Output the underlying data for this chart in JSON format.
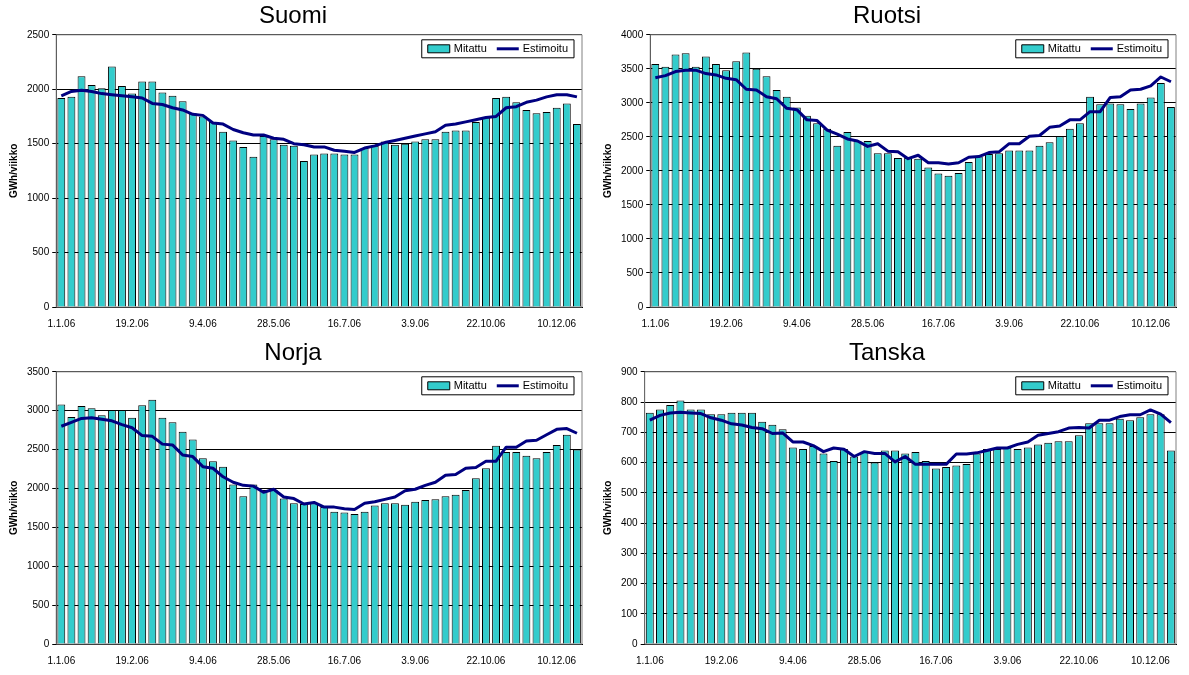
{
  "chart_data": [
    {
      "type": "bar",
      "title": "Suomi",
      "ylabel": "GWh/viikko",
      "categories": [
        "1.1.06",
        null,
        null,
        null,
        null,
        null,
        null,
        "19.2.06",
        null,
        null,
        null,
        null,
        null,
        null,
        "9.4.06",
        null,
        null,
        null,
        null,
        null,
        null,
        "28.5.06",
        null,
        null,
        null,
        null,
        null,
        null,
        "16.7.06",
        null,
        null,
        null,
        null,
        null,
        null,
        "3.9.06",
        null,
        null,
        null,
        null,
        null,
        null,
        "22.10.06",
        null,
        null,
        null,
        null,
        null,
        null,
        "10.12.06",
        null,
        null
      ],
      "series": [
        {
          "name": "Mitattu",
          "color": "#33cccc",
          "values": [
            1920,
            1930,
            2120,
            2040,
            2010,
            2210,
            2030,
            1960,
            2070,
            2070,
            1970,
            1940,
            1890,
            1780,
            1750,
            1700,
            1610,
            1530,
            1470,
            1380,
            1570,
            1540,
            1490,
            1480,
            1340,
            1400,
            1410,
            1410,
            1400,
            1400,
            1460,
            1480,
            1520,
            1490,
            1500,
            1520,
            1540,
            1540,
            1610,
            1620,
            1620,
            1700,
            1740,
            1920,
            1930,
            1880,
            1810,
            1780,
            1790,
            1830,
            1870,
            1680
          ]
        },
        {
          "name": "Estimoitu",
          "type": "line",
          "color": "#000080",
          "values": [
            1940,
            1980,
            1990,
            1980,
            1960,
            1950,
            1940,
            1930,
            1920,
            1870,
            1860,
            1830,
            1810,
            1770,
            1760,
            1690,
            1680,
            1630,
            1600,
            1580,
            1580,
            1550,
            1540,
            1500,
            1490,
            1470,
            1470,
            1440,
            1430,
            1420,
            1460,
            1480,
            1510,
            1530,
            1550,
            1570,
            1590,
            1610,
            1670,
            1680,
            1700,
            1720,
            1740,
            1750,
            1830,
            1840,
            1880,
            1900,
            1930,
            1950,
            1950,
            1930
          ]
        }
      ],
      "ylim": [
        0,
        2500
      ],
      "yticks": [
        0,
        500,
        1000,
        1500,
        2000,
        2500
      ],
      "grid": "y",
      "legend": "top right",
      "marker": "none"
    },
    {
      "type": "bar",
      "title": "Ruotsi",
      "ylabel": "GWh/viikko",
      "categories": [
        "1.1.06",
        null,
        null,
        null,
        null,
        null,
        null,
        "19.2.06",
        null,
        null,
        null,
        null,
        null,
        null,
        "9.4.06",
        null,
        null,
        null,
        null,
        null,
        null,
        "28.5.06",
        null,
        null,
        null,
        null,
        null,
        null,
        "16.7.06",
        null,
        null,
        null,
        null,
        null,
        null,
        "3.9.06",
        null,
        null,
        null,
        null,
        null,
        null,
        "22.10.06",
        null,
        null,
        null,
        null,
        null,
        null,
        "10.12.06",
        null,
        null
      ],
      "series": [
        {
          "name": "Mitattu",
          "color": "#33cccc",
          "values": [
            3570,
            3530,
            3710,
            3730,
            3530,
            3680,
            3570,
            3480,
            3610,
            3740,
            3500,
            3390,
            3190,
            3090,
            2930,
            2810,
            2700,
            2620,
            2370,
            2570,
            2440,
            2440,
            2260,
            2260,
            2190,
            2190,
            2180,
            2050,
            1960,
            1930,
            1970,
            2130,
            2210,
            2250,
            2260,
            2300,
            2300,
            2300,
            2370,
            2420,
            2510,
            2620,
            2700,
            3090,
            2980,
            2990,
            2980,
            2910,
            2990,
            3080,
            3290,
            2940
          ]
        },
        {
          "name": "Estimoitu",
          "type": "line",
          "color": "#000080",
          "values": [
            3370,
            3400,
            3460,
            3480,
            3480,
            3430,
            3410,
            3360,
            3340,
            3200,
            3190,
            3090,
            3060,
            2920,
            2900,
            2750,
            2740,
            2600,
            2540,
            2470,
            2440,
            2360,
            2400,
            2290,
            2280,
            2180,
            2230,
            2120,
            2120,
            2100,
            2120,
            2200,
            2210,
            2270,
            2280,
            2400,
            2400,
            2510,
            2520,
            2640,
            2660,
            2750,
            2750,
            2870,
            2870,
            3080,
            3090,
            3190,
            3200,
            3250,
            3380,
            3310
          ]
        }
      ],
      "ylim": [
        0,
        4000
      ],
      "yticks": [
        0,
        500,
        1000,
        1500,
        2000,
        2500,
        3000,
        3500,
        4000
      ],
      "grid": "y",
      "legend": "top right",
      "marker": "none"
    },
    {
      "type": "bar",
      "title": "Norja",
      "ylabel": "GWh/viikko",
      "categories": [
        "1.1.06",
        null,
        null,
        null,
        null,
        null,
        null,
        "19.2.06",
        null,
        null,
        null,
        null,
        null,
        null,
        "9.4.06",
        null,
        null,
        null,
        null,
        null,
        null,
        "28.5.06",
        null,
        null,
        null,
        null,
        null,
        null,
        "16.7.06",
        null,
        null,
        null,
        null,
        null,
        null,
        "3.9.06",
        null,
        null,
        null,
        null,
        null,
        null,
        "22.10.06",
        null,
        null,
        null,
        null,
        null,
        null,
        "10.12.06",
        null,
        null
      ],
      "series": [
        {
          "name": "Mitattu",
          "color": "#33cccc",
          "values": [
            3080,
            2920,
            3060,
            3030,
            2940,
            3010,
            3010,
            2910,
            3070,
            3140,
            2910,
            2850,
            2730,
            2630,
            2390,
            2350,
            2280,
            2050,
            1900,
            2050,
            1980,
            1980,
            1870,
            1810,
            1800,
            1810,
            1760,
            1700,
            1690,
            1670,
            1700,
            1780,
            1810,
            1810,
            1790,
            1830,
            1850,
            1860,
            1900,
            1920,
            1980,
            2130,
            2260,
            2550,
            2470,
            2470,
            2420,
            2390,
            2470,
            2560,
            2690,
            2500
          ]
        },
        {
          "name": "Estimoitu",
          "type": "line",
          "color": "#000080",
          "values": [
            2800,
            2850,
            2900,
            2910,
            2890,
            2870,
            2820,
            2780,
            2680,
            2670,
            2570,
            2560,
            2430,
            2410,
            2280,
            2260,
            2150,
            2080,
            2040,
            2030,
            1950,
            1990,
            1890,
            1870,
            1800,
            1820,
            1760,
            1760,
            1740,
            1730,
            1810,
            1830,
            1860,
            1890,
            1970,
            1990,
            2040,
            2080,
            2170,
            2180,
            2260,
            2270,
            2350,
            2350,
            2530,
            2530,
            2610,
            2620,
            2690,
            2760,
            2770,
            2710
          ]
        }
      ],
      "ylim": [
        0,
        3500
      ],
      "yticks": [
        0,
        500,
        1000,
        1500,
        2000,
        2500,
        3000,
        3500
      ],
      "grid": "y",
      "legend": "top right",
      "marker": "none"
    },
    {
      "type": "bar",
      "title": "Tanska",
      "ylabel": "GWh/viikko",
      "categories": [
        "1.1.06",
        null,
        null,
        null,
        null,
        null,
        null,
        "19.2.06",
        null,
        null,
        null,
        null,
        null,
        null,
        "9.4.06",
        null,
        null,
        null,
        null,
        null,
        null,
        "28.5.06",
        null,
        null,
        null,
        null,
        null,
        null,
        "16.7.06",
        null,
        null,
        null,
        null,
        null,
        null,
        "3.9.06",
        null,
        null,
        null,
        null,
        null,
        null,
        "22.10.06",
        null,
        null,
        null,
        null,
        null,
        null,
        "10.12.06",
        null,
        null
      ],
      "series": [
        {
          "name": "Mitattu",
          "color": "#33cccc",
          "values": [
            765,
            775,
            790,
            805,
            775,
            775,
            760,
            760,
            765,
            765,
            765,
            735,
            725,
            710,
            650,
            645,
            655,
            630,
            605,
            645,
            620,
            635,
            600,
            640,
            640,
            630,
            635,
            605,
            580,
            585,
            590,
            595,
            630,
            645,
            645,
            650,
            645,
            650,
            660,
            665,
            670,
            670,
            690,
            730,
            730,
            730,
            745,
            740,
            750,
            760,
            760,
            640
          ]
        },
        {
          "name": "Estimoitu",
          "type": "line",
          "color": "#000080",
          "values": [
            740,
            756,
            764,
            766,
            764,
            762,
            748,
            740,
            728,
            724,
            716,
            712,
            696,
            698,
            668,
            668,
            656,
            636,
            648,
            644,
            620,
            636,
            630,
            630,
            602,
            620,
            594,
            594,
            594,
            594,
            628,
            628,
            632,
            640,
            648,
            648,
            660,
            668,
            690,
            696,
            702,
            714,
            716,
            714,
            740,
            740,
            752,
            758,
            758,
            774,
            760,
            732
          ]
        }
      ],
      "ylim": [
        0,
        900
      ],
      "yticks": [
        0,
        100,
        200,
        300,
        400,
        500,
        600,
        700,
        800,
        900
      ],
      "grid": "y",
      "legend": "top right",
      "marker": "none"
    }
  ]
}
